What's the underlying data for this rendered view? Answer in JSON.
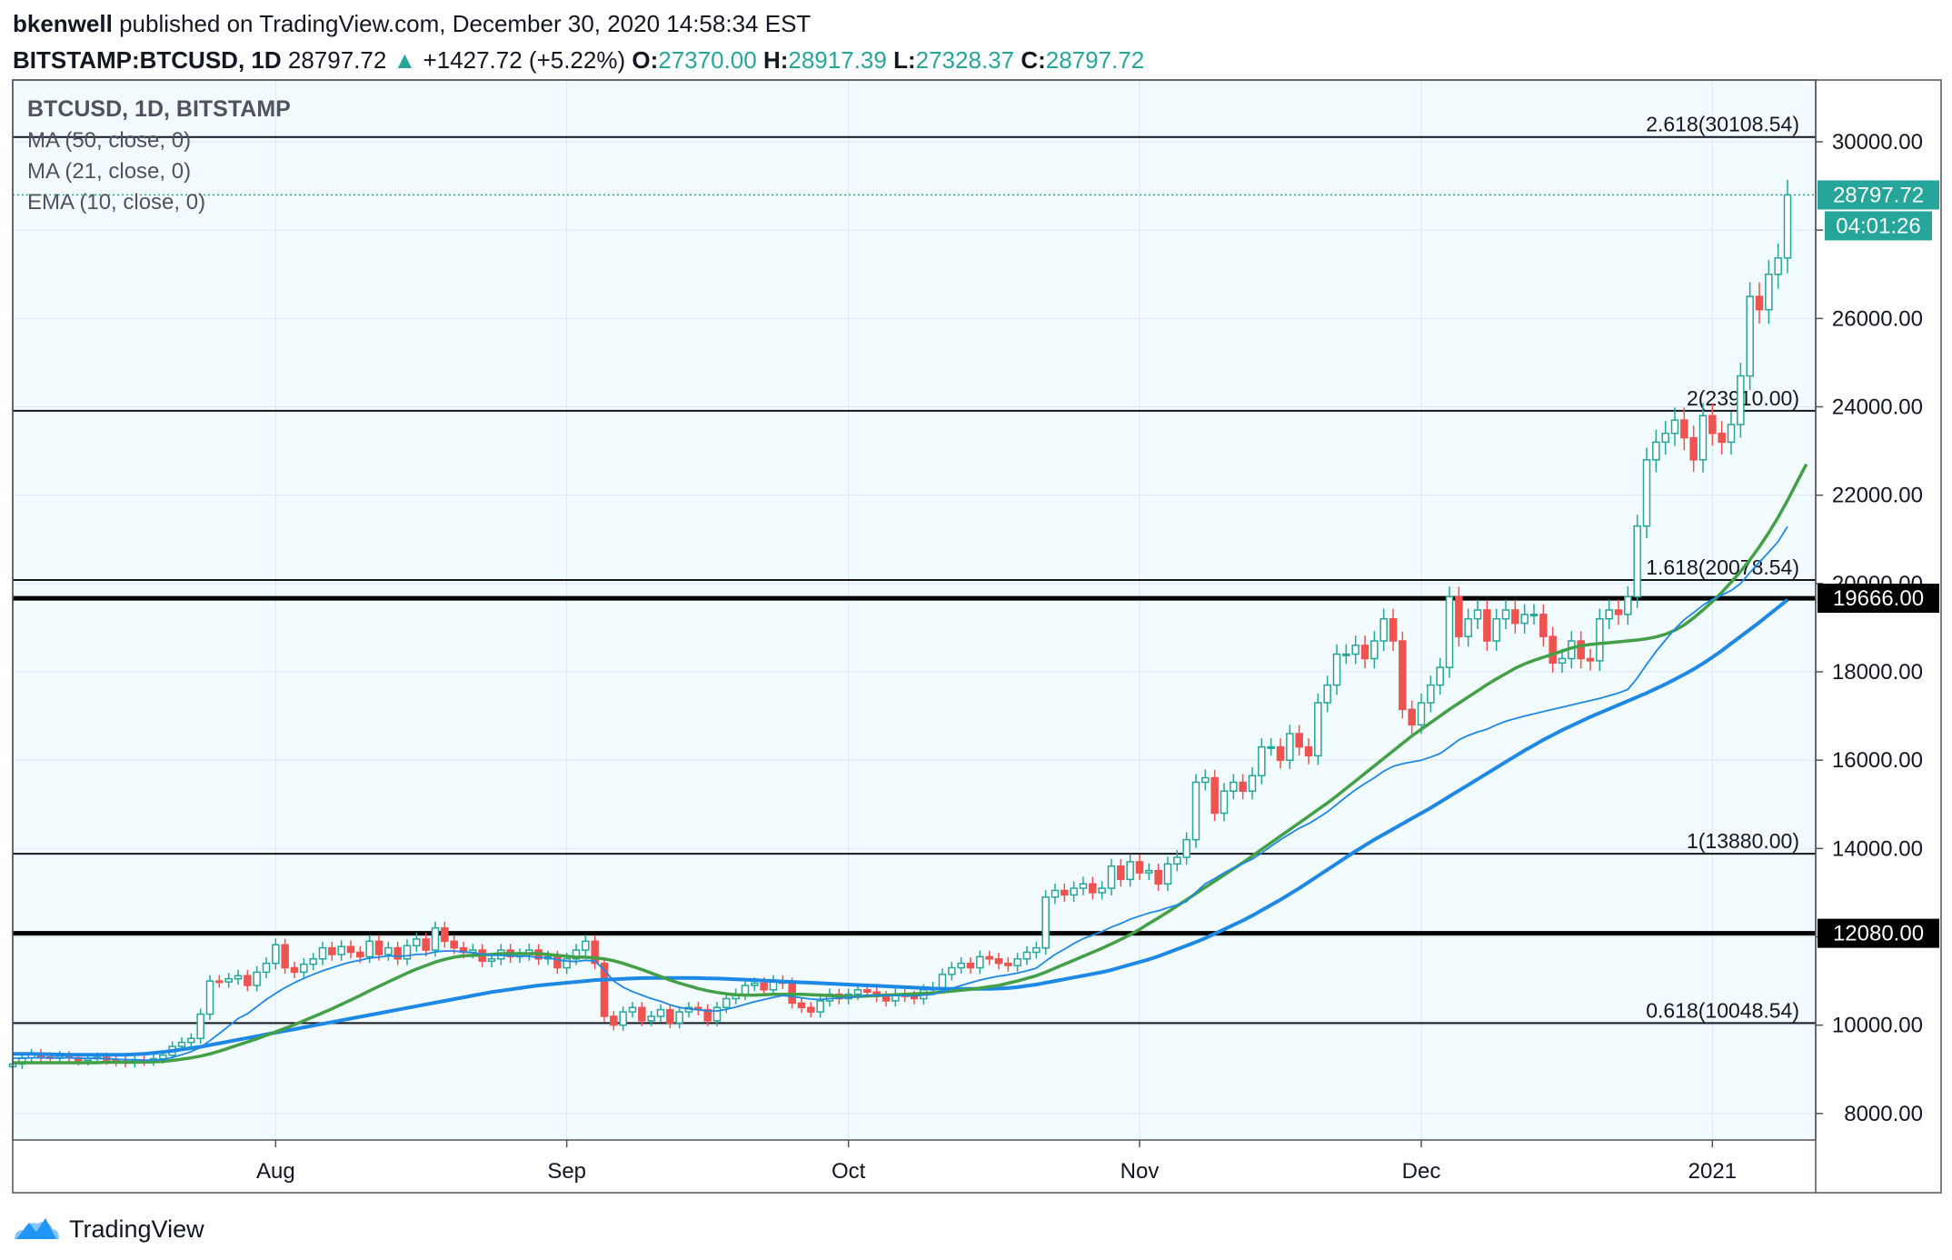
{
  "header": {
    "author": "bkenwell",
    "published": "published on TradingView.com, December 30, 2020 14:58:34 EST",
    "symbol": "BITSTAMP:BTCUSD, 1D",
    "last": "28797.72",
    "change": "+1427.72 (+5.22%)",
    "o_label": "O:",
    "o": "27370.00",
    "h_label": "H:",
    "h": "28917.39",
    "l_label": "L:",
    "l": "27328.37",
    "c_label": "C:",
    "c": "28797.72"
  },
  "legend": {
    "title": "BTCUSD, 1D, BITSTAMP",
    "ma50": "MA (50, close, 0)",
    "ma21": "MA (21, close, 0)",
    "ema10": "EMA (10, close, 0)"
  },
  "footer": {
    "brand": "TradingView"
  },
  "colors": {
    "up": "#26a69a",
    "down": "#ef5350",
    "ma50": "#1e88e5",
    "ma21": "#43a047",
    "ema10": "#1e88e5",
    "bg": "#f2fbfe",
    "grid": "#dde9ee"
  },
  "chart_data": {
    "type": "candlestick",
    "title": "BTCUSD, 1D, BITSTAMP",
    "ylim": [
      7400,
      31400
    ],
    "y_ticks": [
      8000,
      10000,
      12000,
      14000,
      16000,
      18000,
      20000,
      22000,
      24000,
      26000,
      28000,
      30000
    ],
    "y_tick_labels": [
      "8000.00",
      "10000.00",
      "12000.00",
      "14000.00",
      "16000.00",
      "18000.00",
      "20000.00",
      "22000.00",
      "24000.00",
      "26000.00",
      "28000.00",
      "30000.00"
    ],
    "x_range": [
      "2020-07-04",
      "2021-01-12"
    ],
    "x_ticks": [
      {
        "date": "2020-08-01",
        "label": "Aug"
      },
      {
        "date": "2020-09-01",
        "label": "Sep"
      },
      {
        "date": "2020-10-01",
        "label": "Oct"
      },
      {
        "date": "2020-11-01",
        "label": "Nov"
      },
      {
        "date": "2020-12-01",
        "label": "Dec"
      },
      {
        "date": "2021-01-01",
        "label": "2021"
      }
    ],
    "start_date": "2020-07-04",
    "fib_levels": [
      {
        "value": 30108.54,
        "label": "2.618(30108.54)"
      },
      {
        "value": 23910.0,
        "label": "2(23910.00)"
      },
      {
        "value": 20078.54,
        "label": "1.618(20078.54)"
      },
      {
        "value": 13880.0,
        "label": "1(13880.00)"
      },
      {
        "value": 10048.54,
        "label": "0.618(10048.54)"
      }
    ],
    "key_levels": [
      {
        "value": 19666.0,
        "label": "19666.00"
      },
      {
        "value": 12080.0,
        "label": "12080.00"
      }
    ],
    "last_price": {
      "value": 28797.72,
      "label": "28797.72",
      "countdown": "04:01:26"
    },
    "close": [
      9120,
      9260,
      9350,
      9280,
      9250,
      9300,
      9260,
      9200,
      9240,
      9270,
      9210,
      9180,
      9150,
      9200,
      9190,
      9240,
      9320,
      9520,
      9610,
      9700,
      10250,
      11000,
      10980,
      11050,
      11120,
      10900,
      11200,
      11400,
      11820,
      11300,
      11200,
      11380,
      11500,
      11750,
      11600,
      11780,
      11650,
      11550,
      11900,
      11600,
      11750,
      11500,
      11800,
      11950,
      11700,
      12200,
      11900,
      11750,
      11650,
      11700,
      11450,
      11500,
      11700,
      11550,
      11600,
      11700,
      11500,
      11550,
      11300,
      11500,
      11700,
      11900,
      11400,
      10200,
      10000,
      10300,
      10400,
      10100,
      10200,
      10350,
      10050,
      10300,
      10400,
      10350,
      10100,
      10400,
      10600,
      10700,
      10900,
      10950,
      10800,
      11000,
      10950,
      10500,
      10400,
      10300,
      10550,
      10700,
      10600,
      10700,
      10800,
      10750,
      10650,
      10550,
      10700,
      10650,
      10600,
      10800,
      10850,
      11150,
      11300,
      11400,
      11300,
      11550,
      11500,
      11400,
      11350,
      11500,
      11650,
      11750,
      12900,
      13050,
      12950,
      13100,
      13200,
      13000,
      13100,
      13600,
      13300,
      13700,
      13450,
      13500,
      13200,
      13650,
      13800,
      14200,
      15500,
      15600,
      14800,
      15300,
      15500,
      15300,
      15650,
      16300,
      16300,
      16000,
      16600,
      16300,
      16100,
      17300,
      17700,
      18400,
      18400,
      18600,
      18300,
      18700,
      19200,
      18700,
      17150,
      16800,
      17300,
      17700,
      18100,
      19700,
      18800,
      19200,
      19400,
      18700,
      19200,
      19400,
      19100,
      19300,
      19300,
      18800,
      18200,
      18300,
      18700,
      18300,
      18250,
      19200,
      19400,
      19300,
      19700,
      21300,
      22800,
      23200,
      23400,
      23700,
      23300,
      22800,
      23800,
      23400,
      23200,
      23600,
      24700,
      26500,
      26200,
      27000,
      27370,
      28797.72
    ],
    "ma50": [
      9350,
      9350,
      9350,
      9345,
      9340,
      9335,
      9330,
      9330,
      9330,
      9330,
      9330,
      9330,
      9330,
      9340,
      9350,
      9370,
      9390,
      9420,
      9450,
      9480,
      9510,
      9550,
      9590,
      9630,
      9670,
      9710,
      9750,
      9790,
      9830,
      9870,
      9910,
      9950,
      9990,
      10030,
      10070,
      10110,
      10150,
      10190,
      10230,
      10270,
      10310,
      10350,
      10390,
      10430,
      10470,
      10510,
      10550,
      10590,
      10630,
      10670,
      10710,
      10750,
      10780,
      10810,
      10840,
      10870,
      10900,
      10920,
      10940,
      10960,
      10980,
      11000,
      11020,
      11030,
      11040,
      11050,
      11060,
      11065,
      11070,
      11070,
      11070,
      11070,
      11070,
      11065,
      11060,
      11055,
      11050,
      11040,
      11030,
      11020,
      11010,
      11000,
      10990,
      10980,
      10970,
      10960,
      10950,
      10940,
      10930,
      10920,
      10910,
      10900,
      10890,
      10880,
      10870,
      10860,
      10850,
      10840,
      10830,
      10825,
      10820,
      10820,
      10820,
      10820,
      10820,
      10830,
      10840,
      10860,
      10890,
      10920,
      10960,
      11000,
      11040,
      11080,
      11120,
      11160,
      11200,
      11250,
      11310,
      11370,
      11430,
      11490,
      11560,
      11640,
      11720,
      11800,
      11880,
      11970,
      12070,
      12170,
      12270,
      12370,
      12480,
      12600,
      12720,
      12840,
      12970,
      13100,
      13240,
      13380,
      13520,
      13660,
      13800,
      13940,
      14070,
      14200,
      14320,
      14440,
      14560,
      14680,
      14800,
      14920,
      15050,
      15180,
      15310,
      15440,
      15570,
      15700,
      15830,
      15960,
      16090,
      16220,
      16340,
      16460,
      16570,
      16680,
      16780,
      16880,
      16980,
      17070,
      17160,
      17250,
      17340,
      17430,
      17520,
      17620,
      17720,
      17830,
      17940,
      18060,
      18190,
      18330,
      18480,
      18640,
      18800,
      18960,
      19120,
      19290,
      19460,
      19630
    ],
    "ma21": [
      9150,
      9150,
      9150,
      9150,
      9150,
      9150,
      9150,
      9150,
      9150,
      9150,
      9160,
      9160,
      9160,
      9160,
      9165,
      9170,
      9180,
      9200,
      9230,
      9260,
      9300,
      9350,
      9410,
      9480,
      9550,
      9620,
      9690,
      9770,
      9850,
      9930,
      10010,
      10100,
      10190,
      10280,
      10370,
      10470,
      10570,
      10670,
      10780,
      10880,
      10980,
      11080,
      11180,
      11270,
      11350,
      11430,
      11490,
      11540,
      11570,
      11580,
      11590,
      11600,
      11620,
      11620,
      11620,
      11620,
      11620,
      11600,
      11580,
      11560,
      11540,
      11540,
      11520,
      11500,
      11460,
      11400,
      11330,
      11260,
      11180,
      11100,
      11020,
      10950,
      10890,
      10830,
      10780,
      10740,
      10710,
      10690,
      10680,
      10680,
      10690,
      10700,
      10700,
      10700,
      10700,
      10690,
      10680,
      10670,
      10660,
      10650,
      10650,
      10660,
      10670,
      10680,
      10690,
      10700,
      10710,
      10720,
      10730,
      10750,
      10770,
      10790,
      10810,
      10840,
      10870,
      10900,
      10950,
      11000,
      11060,
      11120,
      11200,
      11290,
      11380,
      11470,
      11560,
      11650,
      11740,
      11840,
      11940,
      12050,
      12170,
      12300,
      12430,
      12560,
      12700,
      12840,
      12980,
      13120,
      13260,
      13400,
      13540,
      13680,
      13830,
      13980,
      14130,
      14280,
      14430,
      14580,
      14730,
      14880,
      15030,
      15190,
      15360,
      15530,
      15700,
      15870,
      16040,
      16210,
      16380,
      16550,
      16700,
      16850,
      17000,
      17150,
      17290,
      17430,
      17570,
      17710,
      17840,
      17960,
      18080,
      18180,
      18260,
      18330,
      18400,
      18470,
      18540,
      18590,
      18620,
      18640,
      18660,
      18680,
      18700,
      18720,
      18750,
      18790,
      18850,
      18940,
      19060,
      19220,
      19400,
      19590,
      19800,
      20030,
      20270,
      20540,
      20830,
      21150,
      21500,
      21880,
      22290,
      22700
    ],
    "ema10": [
      9250,
      9250,
      9260,
      9260,
      9260,
      9260,
      9260,
      9250,
      9250,
      9250,
      9240,
      9230,
      9220,
      9220,
      9210,
      9210,
      9220,
      9270,
      9330,
      9400,
      9500,
      9650,
      9810,
      9980,
      10150,
      10260,
      10420,
      10580,
      10720,
      10850,
      10960,
      11060,
      11150,
      11230,
      11300,
      11370,
      11430,
      11470,
      11520,
      11540,
      11570,
      11560,
      11570,
      11600,
      11610,
      11660,
      11680,
      11680,
      11660,
      11640,
      11610,
      11580,
      11580,
      11570,
      11560,
      11560,
      11530,
      11530,
      11480,
      11450,
      11440,
      11470,
      11450,
      11250,
      11000,
      10860,
      10760,
      10680,
      10600,
      10540,
      10460,
      10400,
      10370,
      10350,
      10320,
      10320,
      10360,
      10410,
      10470,
      10530,
      10580,
      10630,
      10670,
      10650,
      10620,
      10590,
      10580,
      10600,
      10610,
      10630,
      10650,
      10670,
      10680,
      10670,
      10670,
      10670,
      10660,
      10680,
      10700,
      10760,
      10830,
      10900,
      10960,
      11020,
      11070,
      11110,
      11140,
      11180,
      11230,
      11290,
      11450,
      11600,
      11720,
      11850,
      11960,
      12040,
      12120,
      12220,
      12300,
      12400,
      12470,
      12540,
      12590,
      12660,
      12720,
      12800,
      13010,
      13200,
      13320,
      13450,
      13560,
      13660,
      13760,
      13900,
      14050,
      14200,
      14330,
      14460,
      14560,
      14690,
      14830,
      15000,
      15170,
      15330,
      15470,
      15600,
      15750,
      15860,
      15920,
      15960,
      16000,
      16070,
      16150,
      16300,
      16460,
      16560,
      16640,
      16700,
      16800,
      16880,
      16940,
      17000,
      17050,
      17100,
      17150,
      17200,
      17250,
      17300,
      17350,
      17400,
      17460,
      17520,
      17600,
      17860,
      18170,
      18460,
      18720,
      18970,
      19180,
      19340,
      19510,
      19640,
      19740,
      19840,
      20000,
      20250,
      20480,
      20710,
      20950,
      21290
    ]
  }
}
